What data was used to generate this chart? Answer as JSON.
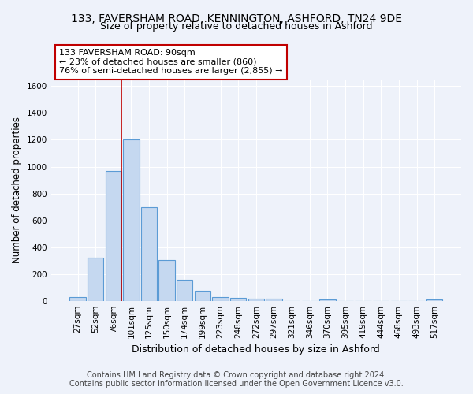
{
  "title": "133, FAVERSHAM ROAD, KENNINGTON, ASHFORD, TN24 9DE",
  "subtitle": "Size of property relative to detached houses in Ashford",
  "xlabel": "Distribution of detached houses by size in Ashford",
  "ylabel": "Number of detached properties",
  "footer_line1": "Contains HM Land Registry data © Crown copyright and database right 2024.",
  "footer_line2": "Contains public sector information licensed under the Open Government Licence v3.0.",
  "bar_labels": [
    "27sqm",
    "52sqm",
    "76sqm",
    "101sqm",
    "125sqm",
    "150sqm",
    "174sqm",
    "199sqm",
    "223sqm",
    "248sqm",
    "272sqm",
    "297sqm",
    "321sqm",
    "346sqm",
    "370sqm",
    "395sqm",
    "419sqm",
    "444sqm",
    "468sqm",
    "493sqm",
    "517sqm"
  ],
  "bar_values": [
    30,
    320,
    970,
    1200,
    700,
    305,
    155,
    75,
    30,
    20,
    15,
    15,
    0,
    0,
    10,
    0,
    0,
    0,
    0,
    0,
    10
  ],
  "bar_color": "#c5d8f0",
  "bar_edge_color": "#5b9bd5",
  "bar_edge_width": 0.8,
  "highlight_line_after_bar": 2,
  "highlight_color": "#c00000",
  "annotation_line1": "133 FAVERSHAM ROAD: 90sqm",
  "annotation_line2": "← 23% of detached houses are smaller (860)",
  "annotation_line3": "76% of semi-detached houses are larger (2,855) →",
  "annotation_box_color": "#c00000",
  "annotation_box_fill": "#ffffff",
  "annotation_fontsize": 8,
  "ylim": [
    0,
    1650
  ],
  "yticks": [
    0,
    200,
    400,
    600,
    800,
    1000,
    1200,
    1400,
    1600
  ],
  "title_fontsize": 10,
  "subtitle_fontsize": 9,
  "xlabel_fontsize": 9,
  "ylabel_fontsize": 8.5,
  "tick_fontsize": 7.5,
  "footer_fontsize": 7,
  "background_color": "#eef2fa",
  "axes_background_color": "#eef2fa",
  "grid_color": "#ffffff",
  "figsize": [
    6.0,
    5.0
  ],
  "dpi": 100
}
